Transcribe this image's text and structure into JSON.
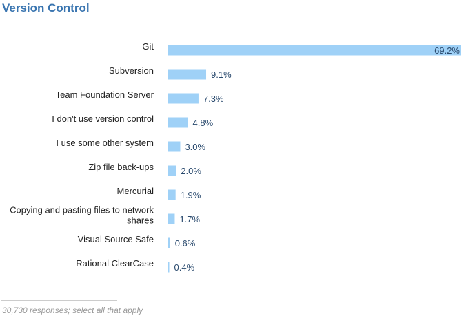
{
  "title": "Version Control",
  "footnote": "30,730 responses; select all that apply",
  "colors": {
    "bar": "#9fd1f7",
    "title": "#3a75b0",
    "value_text": "#2a4a6e",
    "label_text": "#222222"
  },
  "chart_data": {
    "type": "bar",
    "orientation": "horizontal",
    "title": "Version Control",
    "xlabel": "",
    "ylabel": "",
    "xlim": [
      0,
      69.2
    ],
    "grid": false,
    "legend": "none",
    "categories": [
      [
        "Git"
      ],
      [
        "Subversion"
      ],
      [
        "Team Foundation Server"
      ],
      [
        "I don't use version control"
      ],
      [
        "I use some other system"
      ],
      [
        "Zip file back-ups"
      ],
      [
        "Mercurial"
      ],
      [
        "Copying and pasting files to network",
        "shares"
      ],
      [
        "Visual Source Safe"
      ],
      [
        "Rational ClearCase"
      ]
    ],
    "values": [
      69.2,
      9.1,
      7.3,
      4.8,
      3.0,
      2.0,
      1.9,
      1.7,
      0.6,
      0.4
    ],
    "value_labels": [
      "69.2%",
      "9.1%",
      "7.3%",
      "4.8%",
      "3.0%",
      "2.0%",
      "1.9%",
      "1.7%",
      "0.6%",
      "0.4%"
    ]
  }
}
